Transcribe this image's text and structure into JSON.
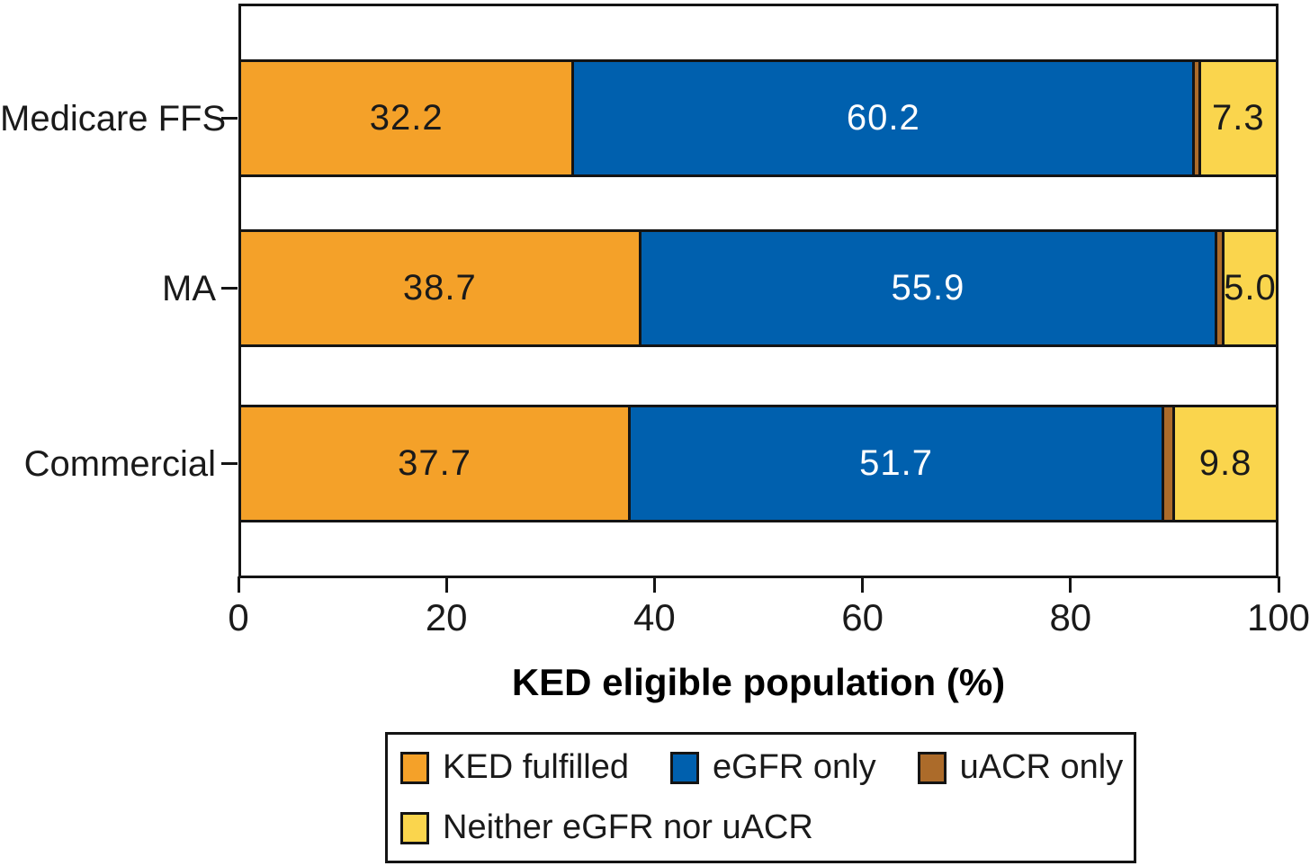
{
  "figure": {
    "background": "#ffffff",
    "axis_color": "#141414"
  },
  "chart_data": {
    "type": "bar",
    "orientation": "horizontal",
    "stacked": true,
    "title": "",
    "xlabel": "KED eligible population (%)",
    "ylabel": "",
    "xlim": [
      0,
      100
    ],
    "x_ticks": [
      "0",
      "20",
      "40",
      "60",
      "80",
      "100"
    ],
    "x_tick_values": [
      0,
      20,
      40,
      60,
      80,
      100
    ],
    "grid": false,
    "legend_position": "bottom",
    "categories": [
      "Medicare FFS",
      "MA",
      "Commercial"
    ],
    "series": [
      {
        "name": "KED fulfilled",
        "color": "#F4A129",
        "label_color": "#1a1a1a",
        "values": [
          32.2,
          38.7,
          37.7
        ],
        "value_labels": [
          "32.2",
          "38.7",
          "37.7"
        ]
      },
      {
        "name": "eGFR only",
        "color": "#0060AE",
        "label_color": "#ffffff",
        "values": [
          60.2,
          55.9,
          51.7
        ],
        "value_labels": [
          "60.2",
          "55.9",
          "51.7"
        ]
      },
      {
        "name": "uACR only",
        "color": "#AC6B2A",
        "label_color": null,
        "values": [
          0.3,
          0.4,
          0.8
        ],
        "value_labels": [
          null,
          null,
          null
        ]
      },
      {
        "name": "Neither eGFR nor uACR",
        "color": "#FAD54D",
        "label_color": "#1a1a1a",
        "values": [
          7.3,
          5.0,
          9.8
        ],
        "value_labels": [
          "7.3",
          "5.0",
          "9.8"
        ]
      }
    ],
    "legend_rows": [
      [
        0,
        1,
        2
      ],
      [
        3
      ]
    ]
  }
}
